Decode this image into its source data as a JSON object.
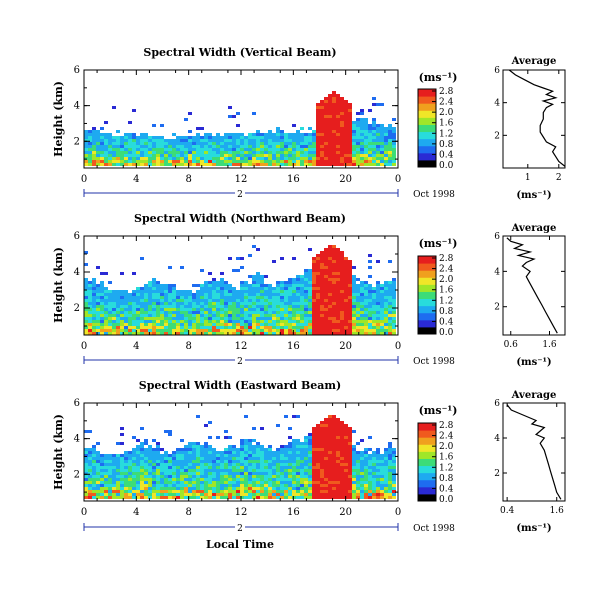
{
  "colorbar": {
    "unit": "(ms⁻¹)",
    "ticks": [
      "0.0",
      "0.4",
      "0.8",
      "1.2",
      "1.6",
      "2.0",
      "2.4",
      "2.8"
    ],
    "colors": [
      "#000000",
      "#2a2ad4",
      "#1e6cf0",
      "#1eaaf0",
      "#28dcdc",
      "#3cdc78",
      "#a0e628",
      "#f0e628",
      "#f0a01e",
      "#f05a1e",
      "#e61e1e"
    ]
  },
  "x_axis_footer": {
    "day": "2",
    "date_label": "Oct 1998",
    "xlabel": "Local Time"
  },
  "chart_data": [
    {
      "type": "heatmap",
      "title": "Spectral Width (Vertical Beam)",
      "ylabel": "Height (km)",
      "x_ticks": [
        "0",
        "4",
        "8",
        "12",
        "16",
        "20",
        "0"
      ],
      "y_ticks": [
        "2",
        "4",
        "6"
      ],
      "xlim": [
        0,
        24
      ],
      "ylim": [
        0.5,
        6
      ],
      "colorbar_range": [
        0,
        2.8
      ],
      "top_boundary_km": [
        2.6,
        2.5,
        2.4,
        2.3,
        2.3,
        2.2,
        2.2,
        2.2,
        2.2,
        2.3,
        2.3,
        2.3,
        2.4,
        2.5,
        2.5,
        2.5,
        2.6,
        2.6,
        2.7,
        2.8,
        3.0,
        3.2,
        3.0,
        2.8
      ],
      "storm_window_local_time": [
        17.8,
        20.6
      ],
      "storm_top_km": 4.8
    },
    {
      "type": "line",
      "title": "Average",
      "xlabel": "(ms⁻¹)",
      "x_ticks": [
        "1",
        "2"
      ],
      "y_ticks": [
        "2",
        "4",
        "6"
      ],
      "xlim": [
        0.2,
        2.2
      ],
      "ylim": [
        0,
        6
      ],
      "series": [
        {
          "x": [
            2.2,
            2.0,
            1.9,
            1.8,
            1.9,
            1.6,
            1.5,
            1.4,
            1.4,
            1.5,
            1.5,
            1.6,
            1.8,
            1.5,
            1.9,
            1.6,
            1.8,
            1.5,
            1.2,
            0.9,
            0.6,
            0.4
          ],
          "y": [
            0.1,
            0.4,
            0.7,
            1.0,
            1.3,
            1.6,
            1.9,
            2.2,
            2.6,
            3.0,
            3.4,
            3.7,
            3.9,
            4.1,
            4.3,
            4.5,
            4.7,
            4.9,
            5.1,
            5.4,
            5.7,
            6.0
          ]
        }
      ]
    },
    {
      "type": "heatmap",
      "title": "Spectral Width (Northward Beam)",
      "ylabel": "Height (km)",
      "x_ticks": [
        "0",
        "4",
        "8",
        "12",
        "16",
        "20",
        "0"
      ],
      "y_ticks": [
        "2",
        "4",
        "6"
      ],
      "xlim": [
        0,
        24
      ],
      "ylim": [
        0.5,
        6
      ],
      "colorbar_range": [
        0,
        2.8
      ],
      "top_boundary_km": [
        3.6,
        3.3,
        3.0,
        2.9,
        3.2,
        3.5,
        3.3,
        3.0,
        2.9,
        3.4,
        3.6,
        3.2,
        3.5,
        3.8,
        3.4,
        3.6,
        3.9,
        4.2,
        4.4,
        4.0,
        3.8,
        3.5,
        3.3,
        3.6
      ],
      "storm_window_local_time": [
        17.5,
        20.5
      ],
      "storm_top_km": 5.6
    },
    {
      "type": "line",
      "title": "Average",
      "xlabel": "(ms⁻¹)",
      "x_ticks": [
        "0.6",
        "1.6"
      ],
      "y_ticks": [
        "2",
        "4",
        "6"
      ],
      "xlim": [
        0.4,
        2.0
      ],
      "ylim": [
        0.4,
        6
      ],
      "series": [
        {
          "x": [
            1.8,
            1.7,
            1.6,
            1.5,
            1.4,
            1.3,
            1.2,
            1.1,
            1.0,
            1.1,
            0.9,
            1.0,
            1.2,
            0.8,
            1.1,
            0.7,
            0.9,
            0.6,
            0.5
          ],
          "y": [
            0.5,
            0.9,
            1.3,
            1.7,
            2.1,
            2.5,
            2.9,
            3.3,
            3.7,
            4.0,
            4.3,
            4.5,
            4.7,
            4.9,
            5.1,
            5.3,
            5.5,
            5.7,
            5.9
          ]
        }
      ]
    },
    {
      "type": "heatmap",
      "title": "Spectral Width (Eastward Beam)",
      "ylabel": "Height (km)",
      "x_ticks": [
        "0",
        "4",
        "8",
        "12",
        "16",
        "20",
        "0"
      ],
      "y_ticks": [
        "2",
        "4",
        "6"
      ],
      "xlim": [
        0,
        24
      ],
      "ylim": [
        0.5,
        6
      ],
      "colorbar_range": [
        0,
        2.8
      ],
      "top_boundary_km": [
        3.4,
        3.1,
        3.0,
        3.3,
        3.6,
        3.5,
        3.2,
        3.4,
        3.8,
        3.6,
        3.3,
        3.5,
        3.9,
        3.7,
        3.4,
        3.6,
        3.8,
        4.1,
        4.3,
        3.9,
        3.6,
        3.4,
        3.2,
        3.5
      ],
      "storm_window_local_time": [
        17.6,
        20.6
      ],
      "storm_top_km": 5.4
    },
    {
      "type": "line",
      "title": "Average",
      "xlabel": "(ms⁻¹)",
      "x_ticks": [
        "0.4",
        "1.6"
      ],
      "y_ticks": [
        "2",
        "4",
        "6"
      ],
      "xlim": [
        0.3,
        1.8
      ],
      "ylim": [
        0.4,
        6
      ],
      "series": [
        {
          "x": [
            1.7,
            1.6,
            1.55,
            1.5,
            1.45,
            1.4,
            1.35,
            1.3,
            1.2,
            1.3,
            1.1,
            1.2,
            1.3,
            1.0,
            1.1,
            0.9,
            0.7,
            0.5,
            0.4
          ],
          "y": [
            0.5,
            0.9,
            1.3,
            1.7,
            2.1,
            2.5,
            2.9,
            3.3,
            3.7,
            4.0,
            4.2,
            4.4,
            4.6,
            4.8,
            5.0,
            5.2,
            5.4,
            5.6,
            5.9
          ]
        }
      ]
    }
  ]
}
